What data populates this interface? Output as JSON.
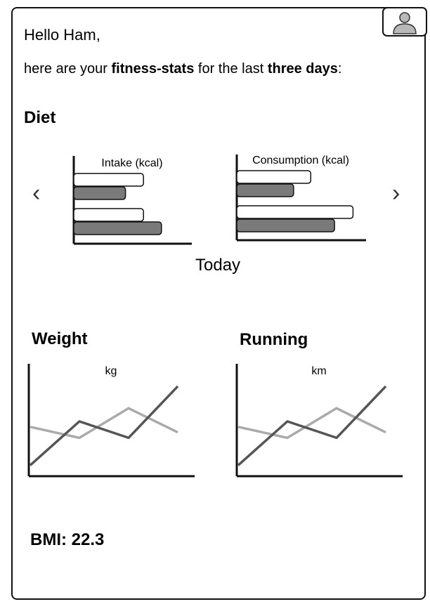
{
  "greeting": "Hello Ham,",
  "intro": {
    "prefix": "here are your ",
    "bold1": "fitness-stats",
    "middle": " for the last ",
    "bold2": "three days",
    "suffix": ":"
  },
  "diet": {
    "heading": "Diet",
    "prev_arrow": "‹",
    "next_arrow": "›",
    "period_label": "Today"
  },
  "weight": {
    "heading": "Weight"
  },
  "running": {
    "heading": "Running"
  },
  "bmi_label": "BMI: 22.3",
  "colors": {
    "light_series": "#aaaaaa",
    "dark_series": "#555555",
    "dark_bar": "#7a7a7a",
    "light_bar": "#ffffff"
  },
  "icons": {
    "avatar": "user-avatar-icon",
    "prev": "chevron-left-icon",
    "next": "chevron-right-icon"
  },
  "chart_data": [
    {
      "type": "bar",
      "orientation": "horizontal",
      "title": "Intake (kcal)",
      "series": [
        {
          "name": "",
          "values": [
            0.62,
            0.62
          ]
        },
        {
          "name": "",
          "values": [
            0.46,
            0.78
          ]
        }
      ],
      "ylim": [
        0,
        1
      ]
    },
    {
      "type": "bar",
      "orientation": "horizontal",
      "title": "Consumption (kcal)",
      "series": [
        {
          "name": "",
          "values": [
            0.56,
            0.88
          ]
        },
        {
          "name": "",
          "values": [
            0.43,
            0.74
          ]
        }
      ],
      "ylim": [
        0,
        1
      ]
    },
    {
      "type": "line",
      "title": "kg",
      "x": [
        0,
        1,
        2,
        3
      ],
      "series": [
        {
          "name": "",
          "values": [
            0.45,
            0.35,
            0.62,
            0.4
          ]
        },
        {
          "name": "",
          "values": [
            0.1,
            0.5,
            0.35,
            0.82
          ]
        }
      ],
      "ylim": [
        0,
        1
      ]
    },
    {
      "type": "line",
      "title": "km",
      "x": [
        0,
        1,
        2,
        3
      ],
      "series": [
        {
          "name": "",
          "values": [
            0.45,
            0.35,
            0.62,
            0.4
          ]
        },
        {
          "name": "",
          "values": [
            0.1,
            0.5,
            0.35,
            0.82
          ]
        }
      ],
      "ylim": [
        0,
        1
      ]
    }
  ]
}
